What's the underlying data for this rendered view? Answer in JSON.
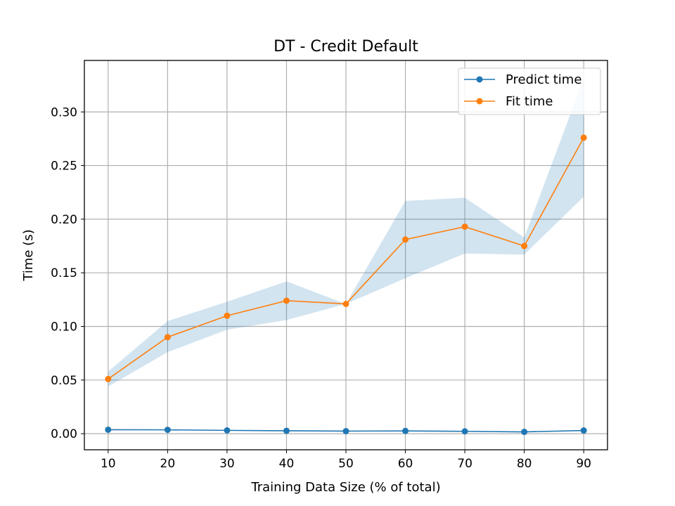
{
  "chart_data": {
    "type": "line",
    "title": "DT - Credit Default",
    "xlabel": "Training Data Size (% of total)",
    "ylabel": "Time (s)",
    "x": [
      10,
      20,
      30,
      40,
      50,
      60,
      70,
      80,
      90
    ],
    "xlim": [
      6,
      94
    ],
    "ylim": [
      -0.015,
      0.348
    ],
    "xticks": [
      10,
      20,
      30,
      40,
      50,
      60,
      70,
      80,
      90
    ],
    "xtick_labels": [
      "10",
      "20",
      "30",
      "40",
      "50",
      "60",
      "70",
      "80",
      "90"
    ],
    "yticks": [
      0.0,
      0.05,
      0.1,
      0.15,
      0.2,
      0.25,
      0.3
    ],
    "ytick_labels": [
      "0.00",
      "0.05",
      "0.10",
      "0.15",
      "0.20",
      "0.25",
      "0.30"
    ],
    "grid": true,
    "legend_position": "top-right",
    "series": [
      {
        "name": "Predict time",
        "color": "#1f77b4",
        "values": [
          0.0037,
          0.0036,
          0.0031,
          0.0027,
          0.0024,
          0.0026,
          0.0022,
          0.0017,
          0.003
        ]
      },
      {
        "name": "Fit time",
        "color": "#ff7f0e",
        "values": [
          0.051,
          0.09,
          0.11,
          0.124,
          0.121,
          0.181,
          0.193,
          0.175,
          0.276
        ],
        "band": {
          "color": "#1f77b4",
          "opacity": 0.2,
          "lower": [
            0.044,
            0.076,
            0.097,
            0.106,
            0.121,
            0.145,
            0.168,
            0.167,
            0.221
          ],
          "upper": [
            0.058,
            0.105,
            0.123,
            0.142,
            0.121,
            0.217,
            0.22,
            0.183,
            0.331
          ]
        }
      }
    ]
  }
}
